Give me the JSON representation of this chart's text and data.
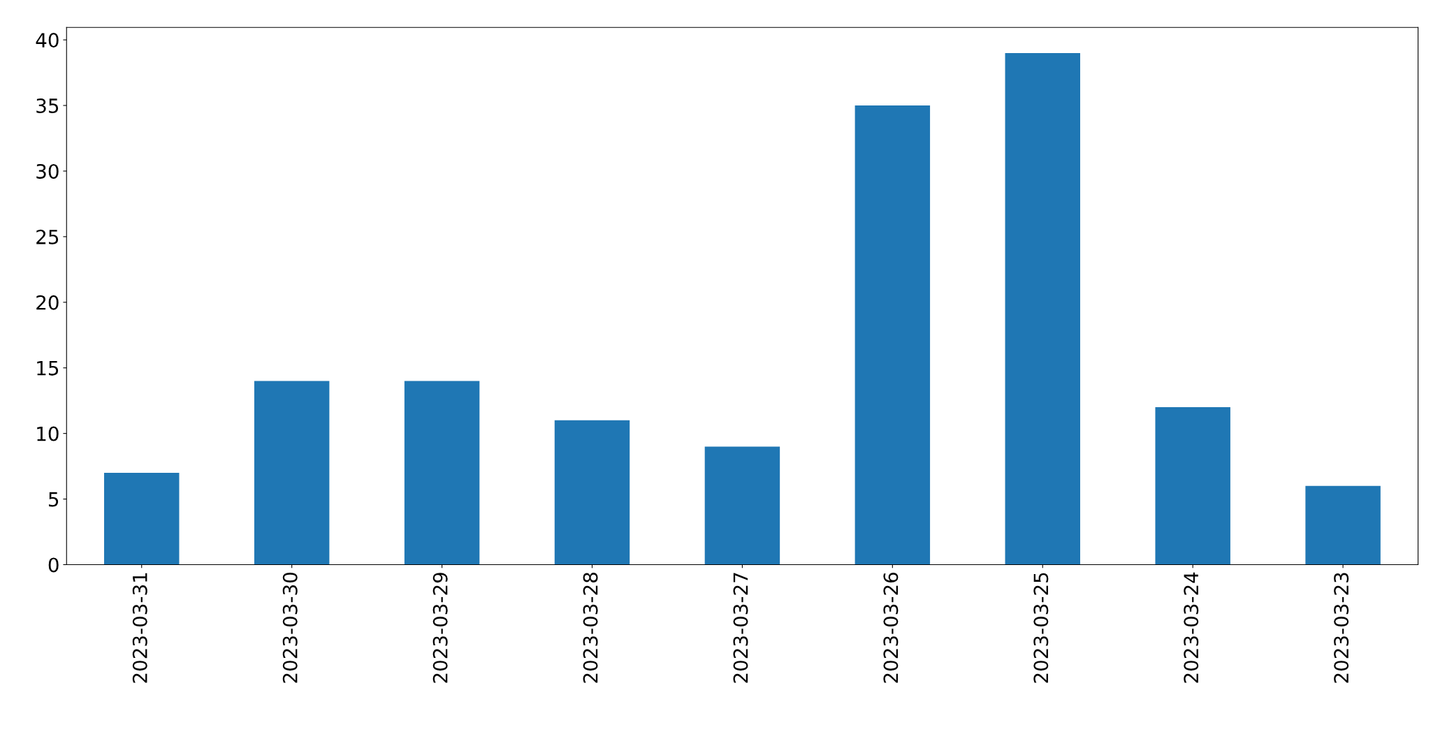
{
  "chart_data": {
    "type": "bar",
    "categories": [
      "2023-03-31",
      "2023-03-30",
      "2023-03-29",
      "2023-03-28",
      "2023-03-27",
      "2023-03-26",
      "2023-03-25",
      "2023-03-24",
      "2023-03-23"
    ],
    "values": [
      7,
      14,
      14,
      11,
      9,
      35,
      39,
      12,
      6
    ],
    "color": "#1f77b4",
    "ylim": [
      0,
      40.95
    ],
    "yticks": [
      0,
      5,
      10,
      15,
      20,
      25,
      30,
      35,
      40
    ],
    "grid": false
  }
}
